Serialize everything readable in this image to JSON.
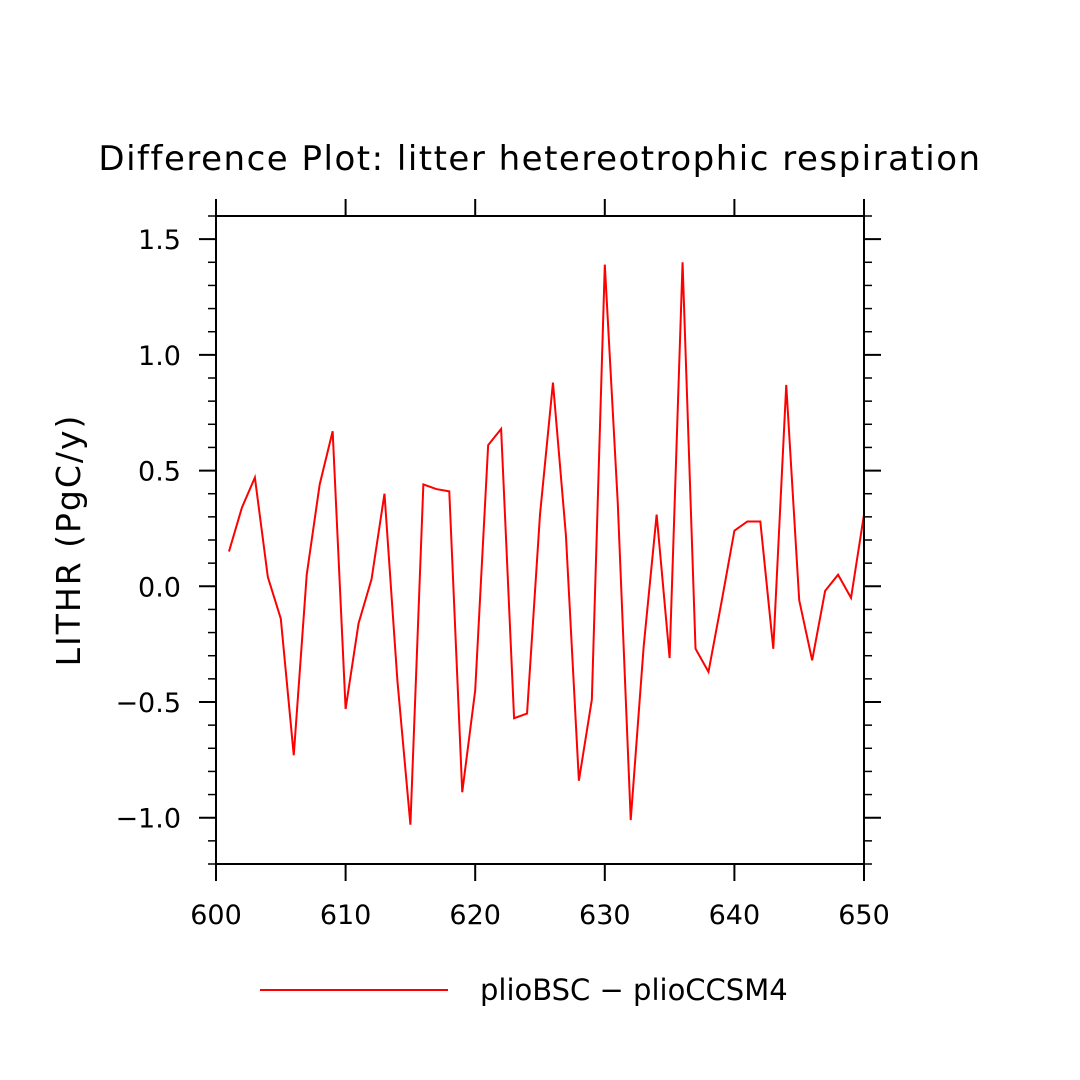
{
  "chart_data": {
    "type": "line",
    "title": "Difference Plot: litter hetereotrophic respiration",
    "xlabel": "",
    "ylabel": "LITHR  (PgC/y)",
    "xlim": [
      600,
      650
    ],
    "ylim": [
      -1.2,
      1.6
    ],
    "x_ticks": [
      600,
      610,
      620,
      630,
      640,
      650
    ],
    "x_tick_labels": [
      "600",
      "610",
      "620",
      "630",
      "640",
      "650"
    ],
    "y_ticks": [
      -1.0,
      -0.5,
      0.0,
      0.5,
      1.0,
      1.5
    ],
    "y_tick_labels": [
      "−1.0",
      "−0.5",
      "0.0",
      "0.5",
      "1.0",
      "1.5"
    ],
    "grid": false,
    "legend": {
      "placement": "bottom-center"
    },
    "series": [
      {
        "name": "plioBSC − plioCCSM4",
        "color": "#ff0000",
        "x": [
          601,
          602,
          603,
          604,
          605,
          606,
          607,
          608,
          609,
          610,
          611,
          612,
          613,
          614,
          615,
          616,
          617,
          618,
          619,
          620,
          621,
          622,
          623,
          624,
          625,
          626,
          627,
          628,
          629,
          630,
          631,
          632,
          633,
          634,
          635,
          636,
          637,
          638,
          639,
          640,
          641,
          642,
          643,
          644,
          645,
          646,
          647,
          648,
          649,
          650
        ],
        "values": [
          0.15,
          0.34,
          0.47,
          0.04,
          -0.14,
          -0.73,
          0.05,
          0.44,
          0.67,
          -0.53,
          -0.16,
          0.03,
          0.4,
          -0.41,
          -1.03,
          0.44,
          0.42,
          0.41,
          -0.89,
          -0.45,
          0.61,
          0.68,
          -0.57,
          -0.55,
          0.31,
          0.88,
          0.22,
          -0.84,
          -0.49,
          1.39,
          0.36,
          -1.01,
          -0.26,
          0.31,
          -0.31,
          1.4,
          -0.27,
          -0.37,
          -0.07,
          0.24,
          0.28,
          0.28,
          -0.27,
          0.87,
          -0.06,
          -0.32,
          -0.02,
          0.05,
          -0.05,
          0.31
        ]
      }
    ]
  }
}
